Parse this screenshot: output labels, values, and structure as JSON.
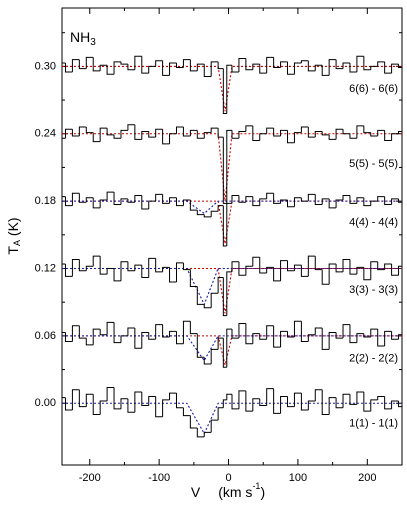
{
  "chart_data": {
    "type": "step",
    "annotation": [
      "NH",
      "3"
    ],
    "xlabel": [
      "V",
      "(km s",
      "-1",
      ")"
    ],
    "ylabel": [
      "T",
      "A",
      " (K)"
    ],
    "xlim": [
      -240,
      250
    ],
    "ylim": [
      -0.055,
      0.352
    ],
    "xticks": [
      -200,
      -100,
      0,
      100,
      200
    ],
    "xminor": [
      -150,
      -50,
      50,
      150
    ],
    "yticks": [
      {
        "value": 0,
        "label": "0.00"
      },
      0.06,
      0.12,
      0.18,
      0.24,
      {
        "value": 0.3,
        "label": "0.30"
      }
    ],
    "yminor": [
      0.03,
      0.09,
      0.15,
      0.21,
      0.27,
      0.33
    ],
    "color": "#000000",
    "x": [
      -240,
      -230,
      -220,
      -210,
      -200,
      -190,
      -180,
      -170,
      -160,
      -150,
      -140,
      -130,
      -120,
      -110,
      -100,
      -90,
      -80,
      -70,
      -60,
      -50,
      -40,
      -30,
      -20,
      -10,
      -5,
      0,
      10,
      20,
      30,
      40,
      50,
      60,
      70,
      80,
      90,
      100,
      110,
      120,
      130,
      140,
      150,
      160,
      170,
      180,
      190,
      200,
      210,
      220,
      230,
      240,
      250
    ],
    "series": [
      {
        "name": "6(6) - 6(6)",
        "values": [
          0.303,
          0.295,
          0.306,
          0.298,
          0.308,
          0.296,
          0.301,
          0.293,
          0.304,
          0.302,
          0.297,
          0.309,
          0.294,
          0.3,
          0.305,
          0.292,
          0.303,
          0.299,
          0.306,
          0.296,
          0.302,
          0.291,
          0.304,
          0.298,
          0.258,
          0.301,
          0.295,
          0.307,
          0.297,
          0.302,
          0.294,
          0.308,
          0.299,
          0.304,
          0.293,
          0.303,
          0.305,
          0.296,
          0.301,
          0.292,
          0.306,
          0.298,
          0.303,
          0.295,
          0.309,
          0.297,
          0.3,
          0.304,
          0.294,
          0.302,
          0.299
        ]
      },
      {
        "name": "5(5) - 5(5)",
        "values": [
          0.236,
          0.244,
          0.238,
          0.246,
          0.241,
          0.233,
          0.245,
          0.239,
          0.236,
          0.243,
          0.248,
          0.235,
          0.242,
          0.237,
          0.244,
          0.231,
          0.24,
          0.246,
          0.238,
          0.243,
          0.236,
          0.241,
          0.245,
          0.237,
          0.178,
          0.243,
          0.236,
          0.242,
          0.247,
          0.234,
          0.24,
          0.245,
          0.238,
          0.243,
          0.232,
          0.241,
          0.246,
          0.237,
          0.242,
          0.239,
          0.235,
          0.244,
          0.24,
          0.236,
          0.247,
          0.241,
          0.238,
          0.243,
          0.234,
          0.24,
          0.242
        ]
      },
      {
        "name": "4(4) - 4(4)",
        "values": [
          0.184,
          0.176,
          0.187,
          0.179,
          0.183,
          0.174,
          0.181,
          0.188,
          0.177,
          0.182,
          0.179,
          0.185,
          0.173,
          0.18,
          0.186,
          0.178,
          0.183,
          0.176,
          0.181,
          0.172,
          0.168,
          0.166,
          0.171,
          0.176,
          0.14,
          0.178,
          0.185,
          0.179,
          0.184,
          0.176,
          0.182,
          0.187,
          0.178,
          0.181,
          0.175,
          0.183,
          0.18,
          0.186,
          0.177,
          0.182,
          0.174,
          0.181,
          0.185,
          0.178,
          0.183,
          0.176,
          0.18,
          0.184,
          0.177,
          0.182,
          0.179
        ]
      },
      {
        "name": "3(3) - 3(3)",
        "values": [
          0.124,
          0.113,
          0.128,
          0.118,
          0.122,
          0.131,
          0.115,
          0.12,
          0.109,
          0.126,
          0.118,
          0.123,
          0.112,
          0.129,
          0.117,
          0.121,
          0.108,
          0.125,
          0.119,
          0.104,
          0.088,
          0.085,
          0.098,
          0.112,
          0.078,
          0.117,
          0.126,
          0.114,
          0.122,
          0.13,
          0.116,
          0.121,
          0.109,
          0.127,
          0.118,
          0.123,
          0.113,
          0.131,
          0.119,
          0.106,
          0.124,
          0.117,
          0.128,
          0.115,
          0.121,
          0.11,
          0.126,
          0.119,
          0.124,
          0.114,
          0.122
        ]
      },
      {
        "name": "2(2) - 2(2)",
        "values": [
          0.063,
          0.055,
          0.069,
          0.058,
          0.052,
          0.066,
          0.061,
          0.072,
          0.054,
          0.06,
          0.067,
          0.049,
          0.063,
          0.057,
          0.07,
          0.059,
          0.064,
          0.053,
          0.073,
          0.062,
          0.041,
          0.035,
          0.048,
          0.058,
          0.032,
          0.066,
          0.058,
          0.071,
          0.053,
          0.062,
          0.057,
          0.069,
          0.05,
          0.064,
          0.059,
          0.073,
          0.055,
          0.061,
          0.067,
          0.048,
          0.063,
          0.058,
          0.07,
          0.054,
          0.062,
          0.059,
          0.066,
          0.051,
          0.064,
          0.057,
          0.061
        ]
      },
      {
        "name": "1(1) - 1(1)",
        "values": [
          0.005,
          -0.006,
          0.012,
          -0.003,
          0.008,
          -0.01,
          0.002,
          0.014,
          -0.005,
          0.004,
          -0.008,
          0.01,
          -0.002,
          0.006,
          -0.012,
          0.003,
          0.009,
          -0.004,
          -0.011,
          -0.022,
          -0.03,
          -0.026,
          -0.015,
          -0.004,
          0.003,
          0.008,
          -0.005,
          0.011,
          -0.007,
          0.004,
          -0.002,
          0.013,
          -0.009,
          0.006,
          -0.003,
          0.009,
          -0.006,
          0.002,
          0.012,
          -0.01,
          0.005,
          -0.004,
          0.008,
          -0.001,
          0.01,
          -0.007,
          0.003,
          0.006,
          -0.005,
          0.002,
          -0.003
        ]
      }
    ],
    "fits": [
      {
        "color": "#cc0000",
        "x": [
          -240,
          -15,
          -5,
          5,
          250
        ],
        "values": [
          0.3,
          0.3,
          0.26,
          0.3,
          0.3
        ]
      },
      {
        "color": "#cc0000",
        "x": [
          -240,
          -15,
          -5,
          5,
          250
        ],
        "values": [
          0.24,
          0.24,
          0.18,
          0.24,
          0.24
        ]
      },
      {
        "color": "#cc0000",
        "x": [
          -240,
          -15,
          -5,
          5,
          250
        ],
        "values": [
          0.18,
          0.18,
          0.142,
          0.18,
          0.18
        ]
      },
      {
        "color": "#cc0000",
        "x": [
          -240,
          -15,
          -5,
          5,
          250
        ],
        "values": [
          0.12,
          0.12,
          0.08,
          0.12,
          0.12
        ]
      },
      {
        "color": "#cc0000",
        "x": [
          -240,
          -15,
          -5,
          5,
          250
        ],
        "values": [
          0.06,
          0.06,
          0.034,
          0.06,
          0.06
        ]
      },
      {
        "color": "#1a1aaa",
        "x": [
          -240,
          -60,
          -35,
          -15,
          250
        ],
        "values": [
          0.18,
          0.18,
          0.169,
          0.18,
          0.18
        ]
      },
      {
        "color": "#1a1aaa",
        "x": [
          -240,
          -60,
          -35,
          -15,
          250
        ],
        "values": [
          0.12,
          0.12,
          0.088,
          0.12,
          0.12
        ]
      },
      {
        "color": "#1a1aaa",
        "x": [
          -240,
          -60,
          -35,
          -15,
          250
        ],
        "values": [
          0.06,
          0.06,
          0.038,
          0.06,
          0.06
        ]
      },
      {
        "color": "#1a1aaa",
        "x": [
          -240,
          -60,
          -35,
          -15,
          250
        ],
        "values": [
          0,
          0,
          -0.027,
          0,
          0
        ]
      }
    ]
  }
}
